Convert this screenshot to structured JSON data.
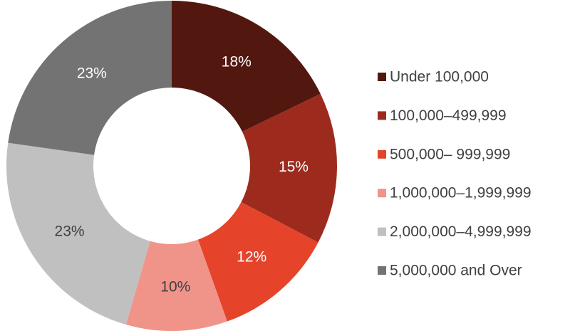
{
  "chart_data": {
    "type": "donut",
    "categories": [
      "Under 100,000",
      "100,000–499,999",
      "500,000– 999,999",
      "1,000,000–1,999,999",
      "2,000,000–4,999,999",
      "5,000,000 and Over"
    ],
    "values": [
      18,
      15,
      12,
      10,
      23,
      23
    ],
    "value_labels": [
      "18%",
      "15%",
      "12%",
      "10%",
      "23%",
      "23%"
    ],
    "colors": [
      "#521810",
      "#9c2b1e",
      "#e5442b",
      "#f0948a",
      "#c0c0c0",
      "#737373"
    ],
    "legend": "right"
  }
}
